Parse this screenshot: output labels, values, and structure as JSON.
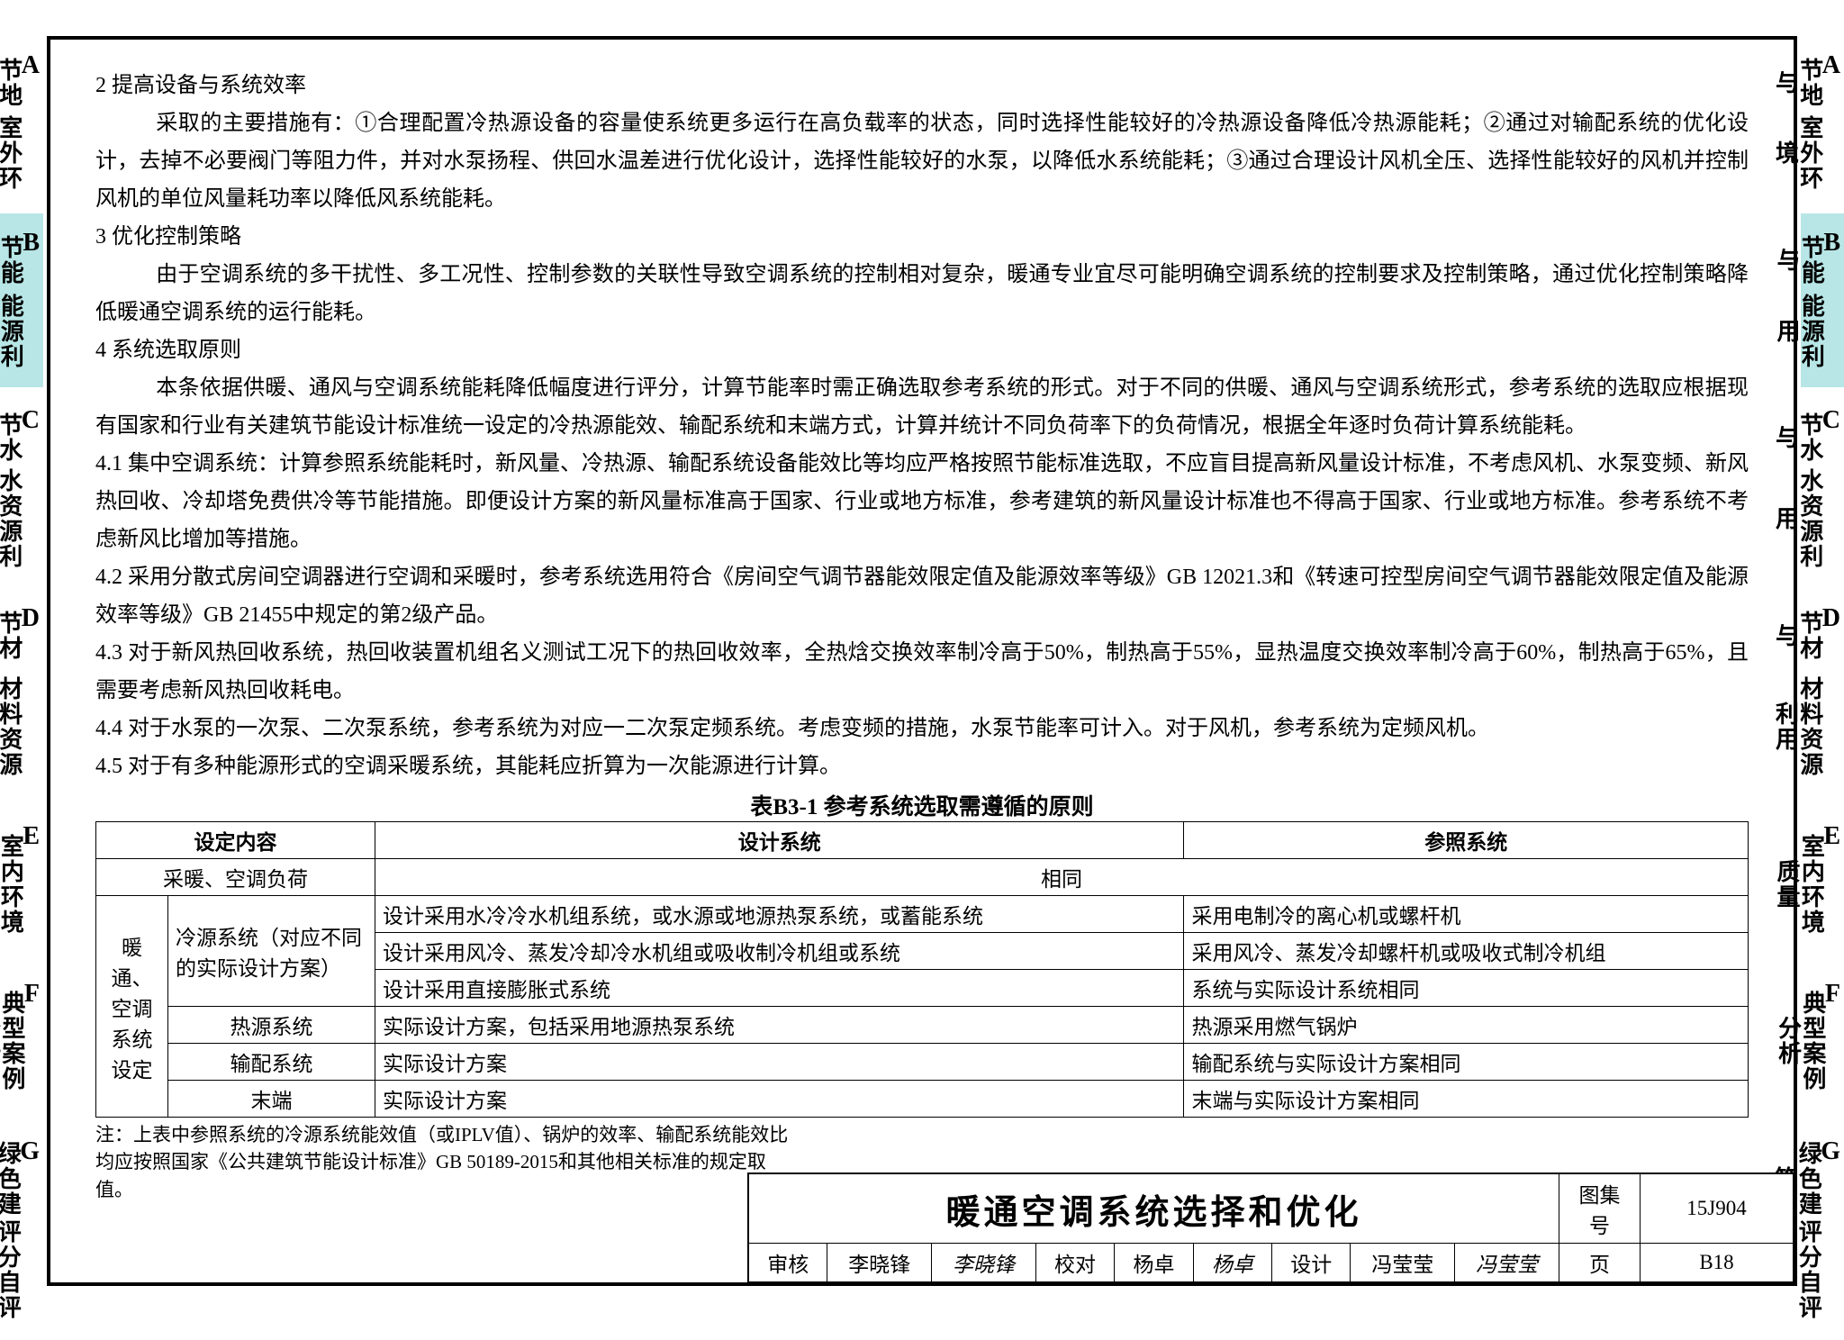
{
  "side_tabs": [
    {
      "letter": "A",
      "line1": "室外环境",
      "line2": "节地与",
      "active": false
    },
    {
      "letter": "B",
      "line1": "能源利用",
      "line2": "节能与",
      "active": true
    },
    {
      "letter": "C",
      "line1": "水资源利用",
      "line2": "节水与",
      "active": false
    },
    {
      "letter": "D",
      "line1": "材料资源利用",
      "line2": "节材与",
      "active": false
    },
    {
      "letter": "E",
      "line1": "室内环境质量",
      "line2": "",
      "active": false
    },
    {
      "letter": "F",
      "line1": "典型案例分析",
      "line2": "",
      "active": false
    },
    {
      "letter": "G",
      "line1": "评分自评表",
      "line2": "绿色建筑",
      "active": false
    }
  ],
  "paragraphs": {
    "h2": "2 提高设备与系统效率",
    "p2": "采取的主要措施有：①合理配置冷热源设备的容量使系统更多运行在高负载率的状态，同时选择性能较好的冷热源设备降低冷热源能耗；②通过对输配系统的优化设计，去掉不必要阀门等阻力件，并对水泵扬程、供回水温差进行优化设计，选择性能较好的水泵，以降低水系统能耗；③通过合理设计风机全压、选择性能较好的风机并控制风机的单位风量耗功率以降低风系统能耗。",
    "h3": "3 优化控制策略",
    "p3": "由于空调系统的多干扰性、多工况性、控制参数的关联性导致空调系统的控制相对复杂，暖通专业宜尽可能明确空调系统的控制要求及控制策略，通过优化控制策略降低暖通空调系统的运行能耗。",
    "h4": "4 系统选取原则",
    "p4": "本条依据供暖、通风与空调系统能耗降低幅度进行评分，计算节能率时需正确选取参考系统的形式。对于不同的供暖、通风与空调系统形式，参考系统的选取应根据现有国家和行业有关建筑节能设计标准统一设定的冷热源能效、输配系统和末端方式，计算并统计不同负荷率下的负荷情况，根据全年逐时负荷计算系统能耗。",
    "p41": "4.1 集中空调系统：计算参照系统能耗时，新风量、冷热源、输配系统设备能效比等均应严格按照节能标准选取，不应盲目提高新风量设计标准，不考虑风机、水泵变频、新风热回收、冷却塔免费供冷等节能措施。即便设计方案的新风量标准高于国家、行业或地方标准，参考建筑的新风量设计标准也不得高于国家、行业或地方标准。参考系统不考虑新风比增加等措施。",
    "p42": "4.2 采用分散式房间空调器进行空调和采暖时，参考系统选用符合《房间空气调节器能效限定值及能源效率等级》GB 12021.3和《转速可控型房间空气调节器能效限定值及能源效率等级》GB 21455中规定的第2级产品。",
    "p43": "4.3 对于新风热回收系统，热回收装置机组名义测试工况下的热回收效率，全热焓交换效率制冷高于50%，制热高于55%，显热温度交换效率制冷高于60%，制热高于65%，且需要考虑新风热回收耗电。",
    "p44": "4.4 对于水泵的一次泵、二次泵系统，参考系统为对应一二次泵定频系统。考虑变频的措施，水泵节能率可计入。对于风机，参考系统为定频风机。",
    "p45": "4.5 对于有多种能源形式的空调采暖系统，其能耗应折算为一次能源进行计算。"
  },
  "table_title": "表B3-1  参考系统选取需遵循的原则",
  "table": {
    "headers": [
      "设定内容",
      "设计系统",
      "参照系统"
    ],
    "row_load": {
      "label": "采暖、空调负荷",
      "value": "相同"
    },
    "group_label": "暖通、空调系统设定",
    "cold_label": "冷源系统（对应不同的实际设计方案）",
    "cold_rows": [
      {
        "design": "设计采用水冷冷水机组系统，或水源或地源热泵系统，或蓄能系统",
        "ref": "采用电制冷的离心机或螺杆机"
      },
      {
        "design": "设计采用风冷、蒸发冷却冷水机组或吸收制冷机组或系统",
        "ref": "采用风冷、蒸发冷却螺杆机或吸收式制冷机组"
      },
      {
        "design": "设计采用直接膨胀式系统",
        "ref": "系统与实际设计系统相同"
      }
    ],
    "heat_row": {
      "label": "热源系统",
      "design": "实际设计方案，包括采用地源热泵系统",
      "ref": "热源采用燃气锅炉"
    },
    "dist_row": {
      "label": "输配系统",
      "design": "实际设计方案",
      "ref": "输配系统与实际设计方案相同"
    },
    "term_row": {
      "label": "末端",
      "design": "实际设计方案",
      "ref": "末端与实际设计方案相同"
    }
  },
  "footnote": "注：上表中参照系统的冷源系统能效值（或IPLV值）、锅炉的效率、输配系统能效比均应按照国家《公共建筑节能设计标准》GB 50189-2015和其他相关标准的规定取值。",
  "title_block": {
    "title": "暖通空调系统选择和优化",
    "book_label": "图集号",
    "book_no": "15J904",
    "r2": {
      "review_l": "审核",
      "review_v": "李晓锋",
      "review_s": "李晓锋",
      "check_l": "校对",
      "check_v": "杨卓",
      "check_s": "杨卓",
      "design_l": "设计",
      "design_v": "冯莹莹",
      "design_s": "冯莹莹",
      "page_l": "页",
      "page_v": "B18"
    }
  }
}
